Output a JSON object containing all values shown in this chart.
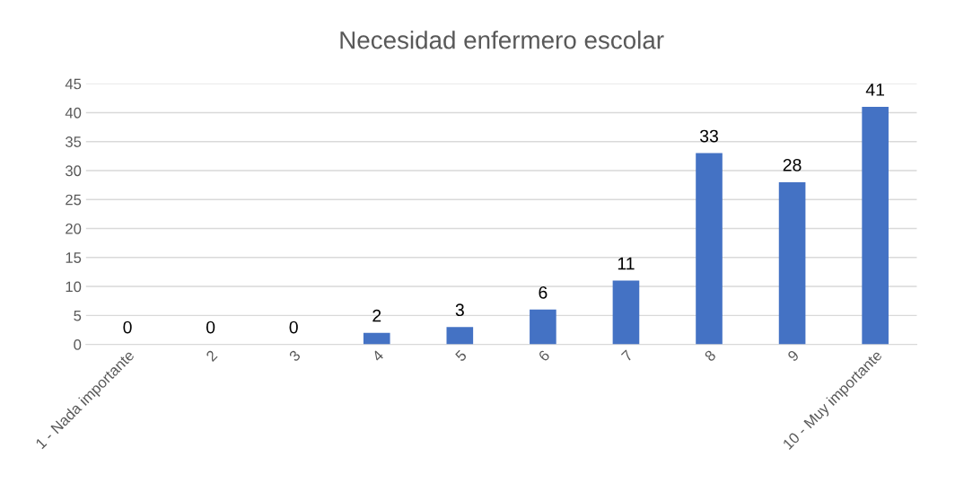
{
  "chart_data": {
    "type": "bar",
    "title": "Necesidad enfermero escolar",
    "categories": [
      "1 - Nada importante",
      "2",
      "3",
      "4",
      "5",
      "6",
      "7",
      "8",
      "9",
      "10 - Muy importante"
    ],
    "values": [
      0,
      0,
      0,
      2,
      3,
      6,
      11,
      33,
      28,
      41
    ],
    "color": "#4472c4",
    "ylim": [
      0,
      45
    ],
    "yticks": [
      0,
      5,
      10,
      15,
      20,
      25,
      30,
      35,
      40,
      45
    ],
    "grid": "y",
    "data_labels": true
  }
}
